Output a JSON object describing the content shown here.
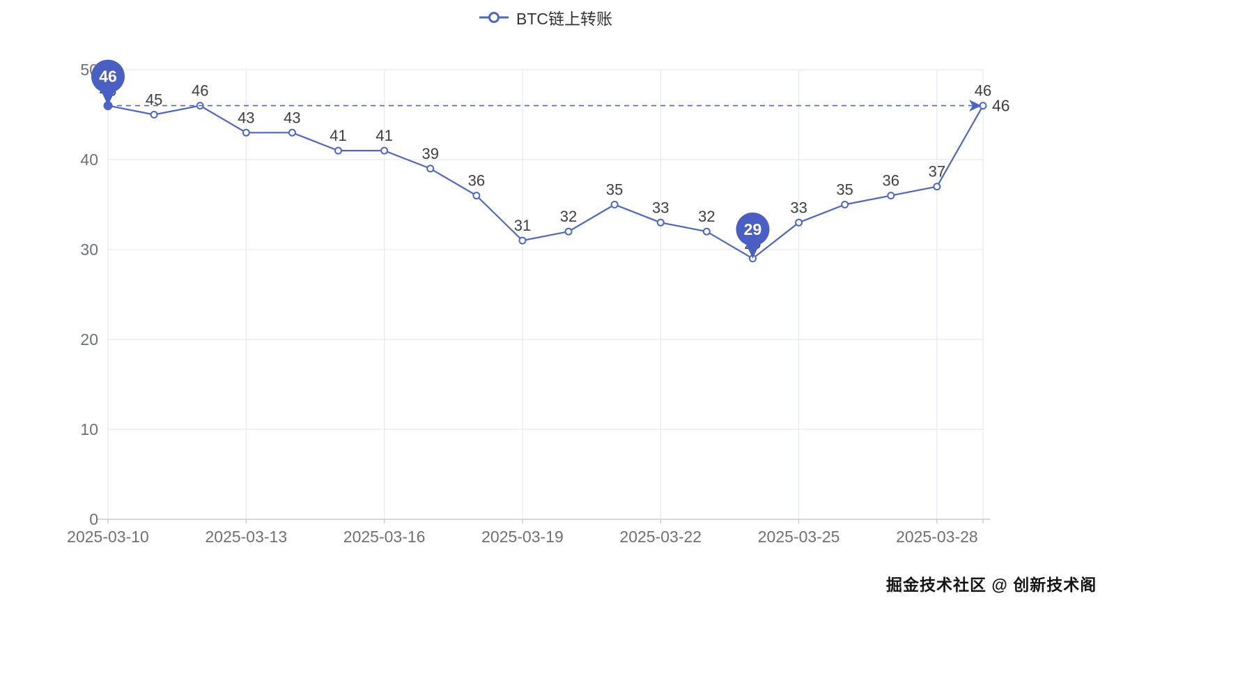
{
  "legend": {
    "label": "BTC链上转账"
  },
  "watermark": "掘金技术社区 @ 创新技术阁",
  "colors": {
    "line": "#4c66c8",
    "marker_fill": "#ffffff",
    "pin": "#4a5fc4",
    "pin_text": "#ffffff",
    "data_label": "#3d3d3d",
    "axis_label": "#6e7079",
    "grid": "#e0e6f1",
    "axis_line": "#c7cbd4",
    "markline_label": "#3d3d3d"
  },
  "chart_data": {
    "type": "line",
    "title": "BTC链上转账",
    "x": [
      "2025-03-10",
      "2025-03-11",
      "2025-03-12",
      "2025-03-13",
      "2025-03-14",
      "2025-03-15",
      "2025-03-16",
      "2025-03-17",
      "2025-03-18",
      "2025-03-19",
      "2025-03-20",
      "2025-03-21",
      "2025-03-22",
      "2025-03-23",
      "2025-03-24",
      "2025-03-25",
      "2025-03-26",
      "2025-03-27",
      "2025-03-28",
      "2025-03-29"
    ],
    "series": [
      {
        "name": "BTC链上转账",
        "values": [
          46,
          45,
          46,
          43,
          43,
          41,
          41,
          39,
          36,
          31,
          32,
          35,
          33,
          32,
          29,
          33,
          35,
          36,
          37,
          46
        ]
      }
    ],
    "ylim": [
      0,
      50
    ],
    "yticks": [
      0,
      10,
      20,
      30,
      40,
      50
    ],
    "xtick_indices": [
      0,
      3,
      6,
      9,
      12,
      15,
      18
    ],
    "xtick_labels": [
      "2025-03-10",
      "2025-03-13",
      "2025-03-16",
      "2025-03-19",
      "2025-03-22",
      "2025-03-25",
      "2025-03-28"
    ],
    "grid": true,
    "legend_position": "top-center",
    "show_point_labels": true,
    "mark_points": [
      {
        "type": "max",
        "index": 0,
        "label": "46"
      },
      {
        "type": "min",
        "index": 14,
        "label": "29"
      }
    ],
    "mark_line": {
      "type": "max",
      "value": 46,
      "label": "46"
    }
  }
}
